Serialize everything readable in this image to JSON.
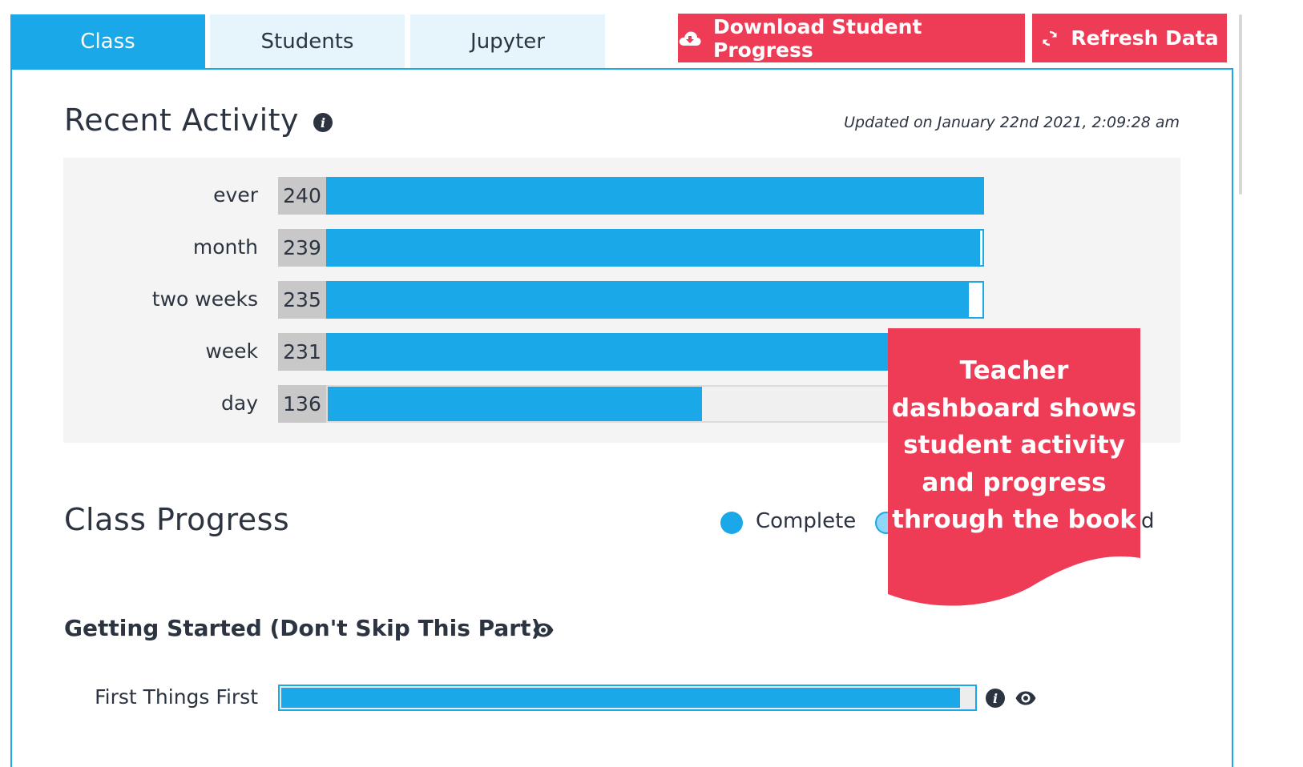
{
  "tabs": [
    {
      "label": "Class",
      "active": true
    },
    {
      "label": "Students",
      "active": false
    },
    {
      "label": "Jupyter",
      "active": false
    }
  ],
  "buttons": {
    "download_label": "Download Student Progress",
    "download_icon": "cloud-download-icon",
    "refresh_label": "Refresh Data",
    "refresh_icon": "refresh-icon"
  },
  "recent_activity": {
    "title": "Recent Activity",
    "updated": "Updated on January 22nd 2021, 2:09:28 am",
    "rows": [
      {
        "label": "ever",
        "count": "240",
        "value": 240
      },
      {
        "label": "month",
        "count": "239",
        "value": 239
      },
      {
        "label": "two weeks",
        "count": "235",
        "value": 235
      },
      {
        "label": "week",
        "count": "231",
        "value": 231
      },
      {
        "label": "day",
        "count": "136",
        "value": 136
      }
    ],
    "max": 240
  },
  "class_progress": {
    "title": "Class Progress",
    "legend": [
      {
        "label": "Complete",
        "color": "#1aa8e8"
      },
      {
        "label": "d",
        "color": "#8fd6f7"
      }
    ]
  },
  "chapter": {
    "title": "Getting Started (Don't Skip This Part)",
    "lessons": [
      {
        "label": "First Things First",
        "complete_fraction": 0.98
      }
    ]
  },
  "callout": {
    "text_lines": [
      "Teacher",
      "dashboard shows",
      "student activity",
      "and progress",
      "through the book"
    ],
    "color": "#ee3c56"
  },
  "colors": {
    "accent": "#1aa8e8",
    "button": "#ee3c56",
    "text": "#2b3440"
  }
}
